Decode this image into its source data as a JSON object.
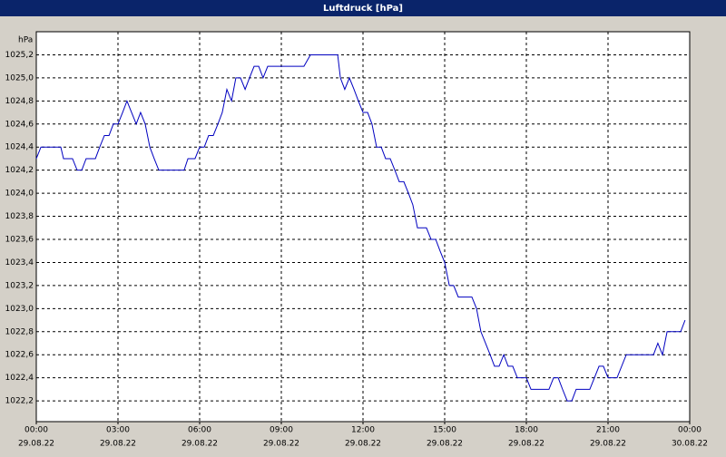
{
  "chart_data": {
    "type": "line",
    "title": "Luftdruck [hPa]",
    "y_unit": "hPa",
    "xlim": [
      0,
      24
    ],
    "ylim": [
      1022.02,
      1025.4
    ],
    "grid": true,
    "xticks": [
      {
        "value": 0,
        "label": "00:00",
        "date": "29.08.22"
      },
      {
        "value": 3,
        "label": "03:00",
        "date": "29.08.22"
      },
      {
        "value": 6,
        "label": "06:00",
        "date": "29.08.22"
      },
      {
        "value": 9,
        "label": "09:00",
        "date": "29.08.22"
      },
      {
        "value": 12,
        "label": "12:00",
        "date": "29.08.22"
      },
      {
        "value": 15,
        "label": "15:00",
        "date": "29.08.22"
      },
      {
        "value": 18,
        "label": "18:00",
        "date": "29.08.22"
      },
      {
        "value": 21,
        "label": "21:00",
        "date": "29.08.22"
      },
      {
        "value": 24,
        "label": "00:00",
        "date": "30.08.22"
      }
    ],
    "yticks": [
      {
        "value": 1022.2,
        "label": "1022,2"
      },
      {
        "value": 1022.4,
        "label": "1022,4"
      },
      {
        "value": 1022.6,
        "label": "1022,6"
      },
      {
        "value": 1022.8,
        "label": "1022,8"
      },
      {
        "value": 1023.0,
        "label": "1023,0"
      },
      {
        "value": 1023.2,
        "label": "1023,2"
      },
      {
        "value": 1023.4,
        "label": "1023,4"
      },
      {
        "value": 1023.6,
        "label": "1023,6"
      },
      {
        "value": 1023.8,
        "label": "1023,8"
      },
      {
        "value": 1024.0,
        "label": "1024,0"
      },
      {
        "value": 1024.2,
        "label": "1024,2"
      },
      {
        "value": 1024.4,
        "label": "1024,4"
      },
      {
        "value": 1024.6,
        "label": "1024,6"
      },
      {
        "value": 1024.8,
        "label": "1024,8"
      },
      {
        "value": 1025.0,
        "label": "1025,0"
      },
      {
        "value": 1025.2,
        "label": "1025,2"
      }
    ],
    "x": [
      0,
      0.17,
      0.9,
      1,
      1.33,
      1.5,
      1.67,
      1.83,
      2.17,
      2.33,
      2.5,
      2.67,
      2.83,
      3,
      3.17,
      3.33,
      3.5,
      3.67,
      3.83,
      4,
      4.17,
      4.33,
      4.5,
      5.43,
      5.57,
      5.83,
      6,
      6.17,
      6.33,
      6.5,
      6.67,
      6.83,
      7,
      7.17,
      7.33,
      7.5,
      7.67,
      7.83,
      8,
      8.17,
      8.33,
      8.5,
      9.83,
      10.07,
      11.07,
      11.17,
      11.33,
      11.5,
      11.67,
      11.83,
      12,
      12.17,
      12.33,
      12.5,
      12.67,
      12.83,
      13,
      13.17,
      13.33,
      13.5,
      13.67,
      13.83,
      14,
      14.33,
      14.5,
      14.67,
      14.83,
      15,
      15.17,
      15.33,
      15.5,
      16,
      16.17,
      16.33,
      16.5,
      16.67,
      16.83,
      17,
      17.17,
      17.33,
      17.5,
      17.67,
      18,
      18.17,
      18.83,
      19,
      19.17,
      19.33,
      19.5,
      19.67,
      19.83,
      20.33,
      20.5,
      20.67,
      20.83,
      21,
      21.33,
      21.67,
      22.67,
      22.83,
      23,
      23.17,
      23.67,
      23.83
    ],
    "series": [
      {
        "name": "Luftdruck",
        "color": "#0000c0",
        "values": [
          1024.3,
          1024.4,
          1024.4,
          1024.3,
          1024.3,
          1024.2,
          1024.2,
          1024.3,
          1024.3,
          1024.4,
          1024.5,
          1024.5,
          1024.6,
          1024.6,
          1024.7,
          1024.8,
          1024.7,
          1024.6,
          1024.7,
          1024.6,
          1024.4,
          1024.3,
          1024.2,
          1024.2,
          1024.3,
          1024.3,
          1024.4,
          1024.4,
          1024.5,
          1024.5,
          1024.6,
          1024.7,
          1024.9,
          1024.8,
          1025.0,
          1025.0,
          1024.9,
          1025.0,
          1025.1,
          1025.1,
          1025.0,
          1025.1,
          1025.1,
          1025.2,
          1025.2,
          1025.0,
          1024.9,
          1025.0,
          1024.9,
          1024.8,
          1024.7,
          1024.7,
          1024.6,
          1024.4,
          1024.4,
          1024.3,
          1024.3,
          1024.2,
          1024.1,
          1024.1,
          1024.0,
          1023.9,
          1023.7,
          1023.7,
          1023.6,
          1023.6,
          1023.5,
          1023.4,
          1023.2,
          1023.2,
          1023.1,
          1023.1,
          1023.0,
          1022.8,
          1022.7,
          1022.6,
          1022.5,
          1022.5,
          1022.6,
          1022.5,
          1022.5,
          1022.4,
          1022.4,
          1022.3,
          1022.3,
          1022.4,
          1022.4,
          1022.3,
          1022.2,
          1022.2,
          1022.3,
          1022.3,
          1022.4,
          1022.5,
          1022.5,
          1022.4,
          1022.4,
          1022.6,
          1022.6,
          1022.7,
          1022.6,
          1022.8,
          1022.8,
          1022.9
        ]
      }
    ]
  }
}
